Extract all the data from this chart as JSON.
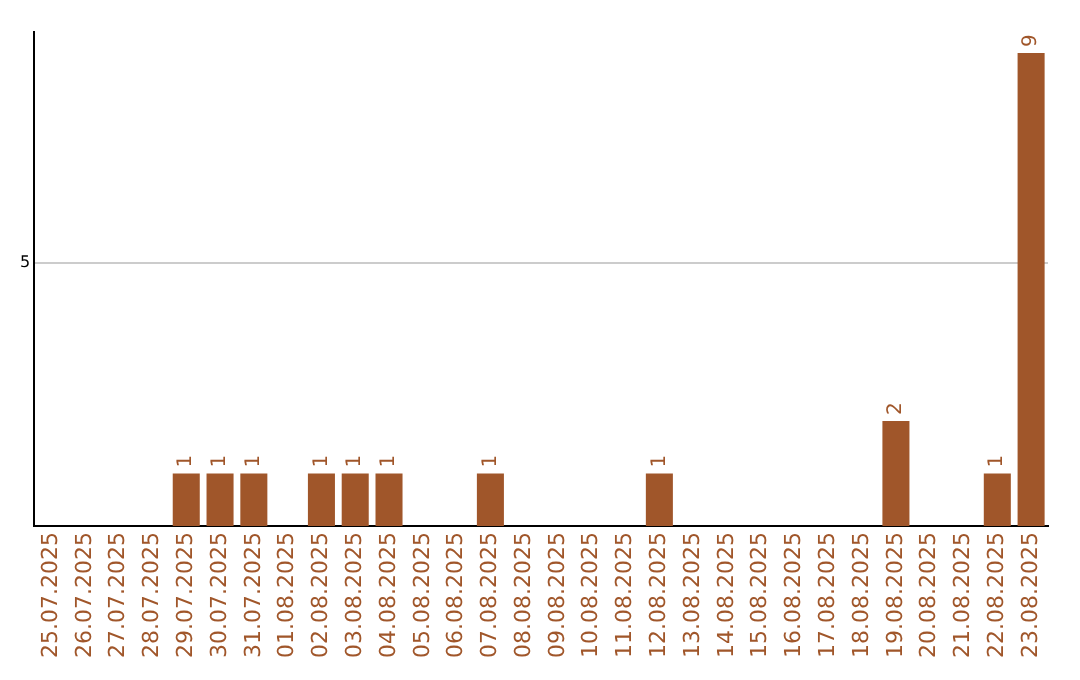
{
  "chart_data": {
    "type": "bar",
    "categories": [
      "25.07.2025",
      "26.07.2025",
      "27.07.2025",
      "28.07.2025",
      "29.07.2025",
      "30.07.2025",
      "31.07.2025",
      "01.08.2025",
      "02.08.2025",
      "03.08.2025",
      "04.08.2025",
      "05.08.2025",
      "06.08.2025",
      "07.08.2025",
      "08.08.2025",
      "09.08.2025",
      "10.08.2025",
      "11.08.2025",
      "12.08.2025",
      "13.08.2025",
      "14.08.2025",
      "15.08.2025",
      "16.08.2025",
      "17.08.2025",
      "18.08.2025",
      "19.08.2025",
      "20.08.2025",
      "21.08.2025",
      "22.08.2025",
      "23.08.2025"
    ],
    "values": [
      0,
      0,
      0,
      0,
      1,
      1,
      1,
      0,
      1,
      1,
      1,
      0,
      0,
      1,
      0,
      0,
      0,
      0,
      1,
      0,
      0,
      0,
      0,
      0,
      0,
      2,
      0,
      0,
      1,
      9
    ],
    "value_labels": [
      null,
      null,
      null,
      null,
      "1",
      "1",
      "1",
      null,
      "1",
      "1",
      "1",
      null,
      null,
      "1",
      null,
      null,
      null,
      null,
      "1",
      null,
      null,
      null,
      null,
      null,
      null,
      "2",
      null,
      null,
      "1",
      "9"
    ],
    "color": "#a0562a",
    "ylim": [
      0,
      9.4
    ],
    "yticks": [
      5
    ],
    "grid": "y",
    "legend": false
  }
}
